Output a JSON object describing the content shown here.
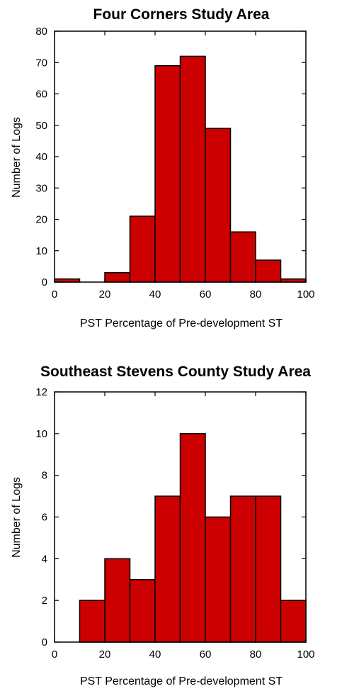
{
  "colors": {
    "bar_fill": "#cc0000",
    "bar_stroke": "#000000"
  },
  "chart_data": [
    {
      "type": "bar",
      "title": "Four Corners Study Area",
      "xlabel": "PST Percentage of Pre-development ST",
      "ylabel": "Number of Logs",
      "bin_edges": [
        0,
        10,
        20,
        30,
        40,
        50,
        60,
        70,
        80,
        90,
        100
      ],
      "values": [
        1,
        0,
        3,
        21,
        69,
        72,
        49,
        16,
        7,
        1
      ],
      "xlim": [
        0,
        100
      ],
      "ylim": [
        0,
        80
      ],
      "xticks": [
        "0",
        "20",
        "40",
        "60",
        "80",
        "100"
      ],
      "yticks": [
        "0",
        "10",
        "20",
        "30",
        "40",
        "50",
        "60",
        "70",
        "80"
      ],
      "grid": false
    },
    {
      "type": "bar",
      "title": "Southeast Stevens County Study Area",
      "xlabel": "PST Percentage of Pre-development ST",
      "ylabel": "Number of Logs",
      "bin_edges": [
        0,
        10,
        20,
        30,
        40,
        50,
        60,
        70,
        80,
        90,
        100
      ],
      "values": [
        0,
        2,
        4,
        3,
        7,
        10,
        6,
        7,
        7,
        2
      ],
      "xlim": [
        0,
        100
      ],
      "ylim": [
        0,
        12
      ],
      "xticks": [
        "0",
        "20",
        "40",
        "60",
        "80",
        "100"
      ],
      "yticks": [
        "0",
        "2",
        "4",
        "6",
        "8",
        "10",
        "12"
      ],
      "grid": false
    }
  ]
}
